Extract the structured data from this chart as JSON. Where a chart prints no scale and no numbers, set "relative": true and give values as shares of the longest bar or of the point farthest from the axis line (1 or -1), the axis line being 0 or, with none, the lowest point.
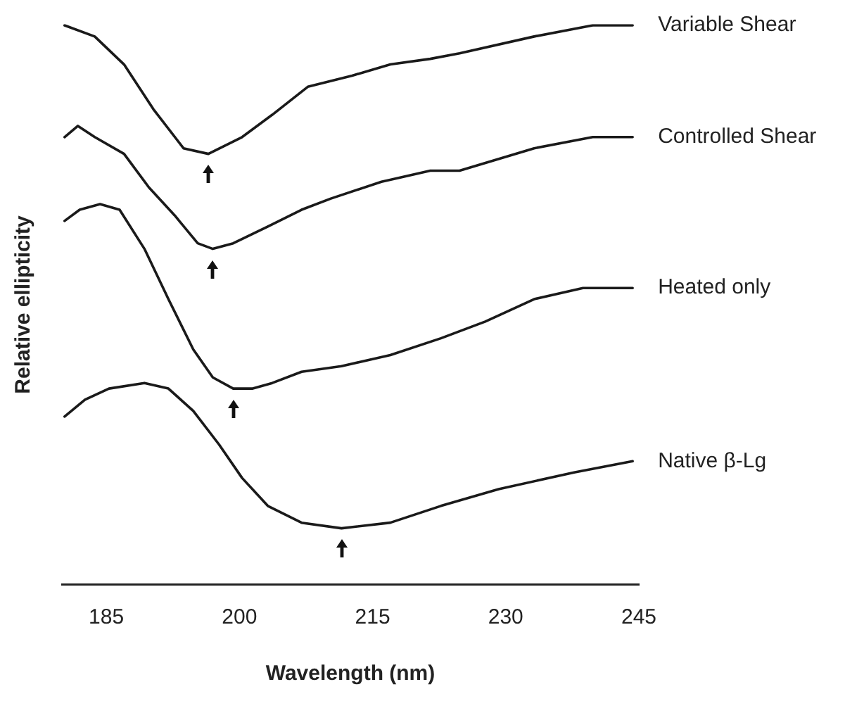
{
  "chart_data": {
    "type": "line",
    "relative": true,
    "xlabel": "Wavelength (nm)",
    "ylabel": "Relative ellipticity",
    "xlim": [
      180,
      245
    ],
    "xticks": [
      185,
      200,
      215,
      230,
      245
    ],
    "grid": false,
    "legend": false,
    "marker": "none",
    "line_style": "solid",
    "series": [
      {
        "name": "Variable Shear",
        "color": "#1a1a1a",
        "x": [
          180.3,
          183.7,
          187,
          190.3,
          193.7,
          196.5,
          200.3,
          203.7,
          207.7,
          212.7,
          217,
          221.5,
          224.8,
          233.2,
          239.8,
          244.3
        ],
        "values": [
          1.0,
          0.98,
          0.93,
          0.85,
          0.78,
          0.77,
          0.8,
          0.84,
          0.89,
          0.91,
          0.93,
          0.94,
          0.95,
          0.98,
          1.0,
          1.0
        ]
      },
      {
        "name": "Controlled Shear",
        "color": "#1a1a1a",
        "x": [
          180.3,
          181.8,
          183.7,
          187,
          189.8,
          192.7,
          195.3,
          197,
          199.3,
          203.2,
          207,
          210.3,
          216,
          221.5,
          224.8,
          233.2,
          239.8,
          244.3
        ],
        "values": [
          0.8,
          0.82,
          0.8,
          0.77,
          0.71,
          0.66,
          0.61,
          0.6,
          0.61,
          0.64,
          0.67,
          0.69,
          0.72,
          0.74,
          0.74,
          0.78,
          0.8,
          0.8
        ]
      },
      {
        "name": "Heated only",
        "color": "#1a1a1a",
        "x": [
          180.3,
          182,
          184.3,
          186.5,
          189.3,
          192,
          194.8,
          197,
          199.3,
          201.5,
          203.7,
          207,
          211.5,
          217,
          222.7,
          227.7,
          233.2,
          238.7,
          244.3
        ],
        "values": [
          0.65,
          0.67,
          0.68,
          0.67,
          0.6,
          0.51,
          0.42,
          0.37,
          0.35,
          0.35,
          0.36,
          0.38,
          0.39,
          0.41,
          0.44,
          0.47,
          0.51,
          0.53,
          0.53
        ]
      },
      {
        "name": "Native β-Lg",
        "color": "#1a1a1a",
        "x": [
          180.3,
          182.6,
          185.3,
          189.3,
          192,
          194.8,
          197.7,
          200.3,
          203.2,
          207,
          211.5,
          217,
          222.7,
          229.2,
          237.7,
          244.3
        ],
        "values": [
          0.3,
          0.33,
          0.35,
          0.36,
          0.35,
          0.31,
          0.25,
          0.19,
          0.14,
          0.11,
          0.1,
          0.11,
          0.14,
          0.17,
          0.2,
          0.22
        ]
      }
    ]
  }
}
